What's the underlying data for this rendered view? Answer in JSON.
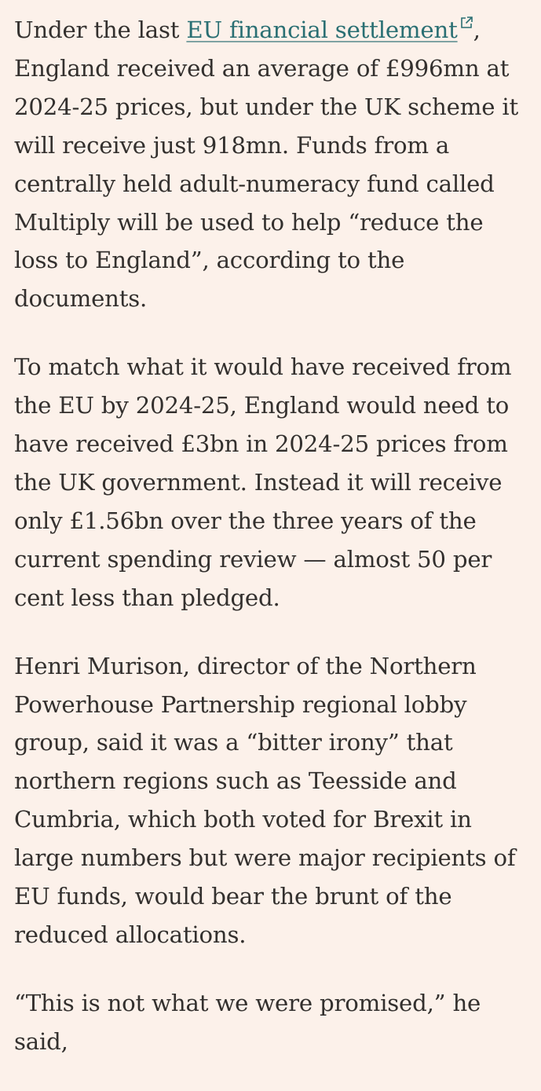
{
  "paragraphs": [
    {
      "link_text": "EU financial settlement",
      "before_link": "Under the last ",
      "after_link": ", England received an average of £996mn at 2024-25 prices, but under the UK scheme it will receive just 918mn. Funds from a centrally held adult-numeracy fund called Multiply will be used to help “reduce the loss to England”, according to the documents."
    },
    {
      "text": "To match what it would have received from the EU by 2024-25, England would need to have received £3bn in 2024-25 prices from the UK government. Instead it will receive only £1.56bn over the three years of the current spending review — almost 50 per cent less than pledged."
    },
    {
      "text": "Henri Murison, director of the Northern Powerhouse Partnership regional lobby group, said it was a “bitter irony” that northern regions such as Teesside and Cumbria, which both voted for Brexit in large numbers but were major recipients of EU funds, would bear the brunt of the reduced allocations."
    },
    {
      "text": "“This is not what we were promised,” he said,"
    }
  ],
  "icons": {
    "external_link": "external-link-icon"
  },
  "colors": {
    "background": "#fcf1ea",
    "text": "#33302e",
    "link": "#2a6f73"
  }
}
